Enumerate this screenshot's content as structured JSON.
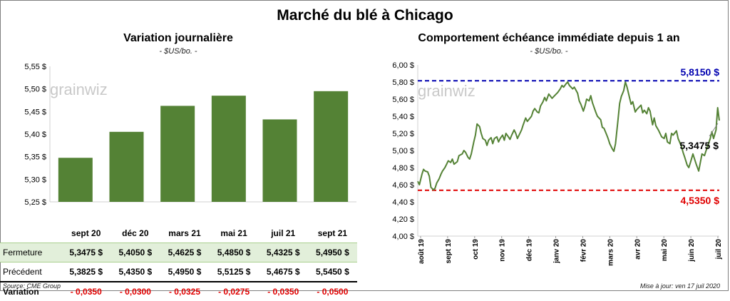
{
  "title": "Marché du blé à Chicago",
  "source": "Source: CME Group",
  "updated": "Mise à jour: ven 17 juil 2020",
  "watermark": "grainwiz",
  "colors": {
    "bar": "#548235",
    "line": "#548235",
    "high": "#0000b0",
    "low": "#e00000",
    "current": "#000000"
  },
  "left_panel": {
    "title": "Variation  journalière",
    "unit": "- $US/bo. -",
    "table": {
      "rows": [
        {
          "label": "Fermeture",
          "values": [
            "5,3475 $",
            "5,4050 $",
            "5,4625 $",
            "5,4850 $",
            "5,4325 $",
            "5,4950 $"
          ]
        },
        {
          "label": "Précédent",
          "values": [
            "5,3825 $",
            "5,4350 $",
            "5,4950 $",
            "5,5125 $",
            "5,4675 $",
            "5,5450 $"
          ]
        },
        {
          "label": "Variation",
          "values": [
            "- 0,0350",
            "- 0,0300",
            "- 0,0325",
            "- 0,0275",
            "- 0,0350",
            "- 0,0500"
          ]
        }
      ]
    }
  },
  "right_panel": {
    "title": "Comportement  échéance immédiate depuis 1 an",
    "unit": "- $US/bo. -",
    "high_label": "5,8150 $",
    "low_label": "4,5350 $",
    "current_label": "5,3475 $"
  },
  "chart_data": [
    {
      "type": "bar",
      "categories": [
        "sept 20",
        "déc 20",
        "mars 21",
        "mai 21",
        "juil 21",
        "sept 21"
      ],
      "values": [
        5.3475,
        5.405,
        5.4625,
        5.485,
        5.4325,
        5.495
      ],
      "ylim": [
        5.25,
        5.55
      ],
      "yticks": [
        "5,25 $",
        "5,30 $",
        "5,35 $",
        "5,40 $",
        "5,45 $",
        "5,50 $",
        "5,55 $"
      ],
      "grid": false
    },
    {
      "type": "line",
      "xlabels": [
        "août 19",
        "sept 19",
        "oct 19",
        "nov 19",
        "déc 19",
        "janv 20",
        "févr 20",
        "mars 20",
        "avr 20",
        "mai 20",
        "juin 20",
        "juil 20"
      ],
      "ylim": [
        4.0,
        6.0
      ],
      "yticks": [
        "4,00 $",
        "4,20 $",
        "4,40 $",
        "4,60 $",
        "4,80 $",
        "5,00 $",
        "5,20 $",
        "5,40 $",
        "5,60 $",
        "5,80 $",
        "6,00 $"
      ],
      "reference_lines": [
        {
          "name": "high",
          "value": 5.815,
          "style": "dashed"
        },
        {
          "name": "low",
          "value": 4.535,
          "style": "dashed"
        }
      ],
      "series": [
        {
          "x": [
            "2019-07-17",
            "2019-07-19",
            "2019-07-22",
            "2019-07-24",
            "2019-07-26",
            "2019-07-29",
            "2019-07-31",
            "2019-08-02",
            "2019-08-05",
            "2019-08-07",
            "2019-08-09",
            "2019-08-12",
            "2019-08-14",
            "2019-08-16",
            "2019-08-19",
            "2019-08-21",
            "2019-08-23",
            "2019-08-26",
            "2019-08-28",
            "2019-08-30",
            "2019-09-03",
            "2019-09-05",
            "2019-09-09",
            "2019-09-11",
            "2019-09-13",
            "2019-09-16",
            "2019-09-18",
            "2019-09-20",
            "2019-09-23",
            "2019-09-25",
            "2019-09-27",
            "2019-09-30",
            "2019-10-02",
            "2019-10-04",
            "2019-10-07",
            "2019-10-09",
            "2019-10-11",
            "2019-10-14",
            "2019-10-16",
            "2019-10-18",
            "2019-10-21",
            "2019-10-23",
            "2019-10-25",
            "2019-10-28",
            "2019-10-30",
            "2019-11-01",
            "2019-11-04",
            "2019-11-06",
            "2019-11-08",
            "2019-11-11",
            "2019-11-13",
            "2019-11-15",
            "2019-11-18",
            "2019-11-20",
            "2019-11-22",
            "2019-11-25",
            "2019-11-27",
            "2019-12-02",
            "2019-12-04",
            "2019-12-06",
            "2019-12-09",
            "2019-12-11",
            "2019-12-13",
            "2019-12-16",
            "2019-12-18",
            "2019-12-20",
            "2019-12-23",
            "2019-12-27",
            "2019-12-30",
            "2020-01-03",
            "2020-01-06",
            "2020-01-08",
            "2020-01-10",
            "2020-01-13",
            "2020-01-15",
            "2020-01-17",
            "2020-01-21",
            "2020-01-23",
            "2020-01-27",
            "2020-01-29",
            "2020-01-31",
            "2020-02-03",
            "2020-02-05",
            "2020-02-07",
            "2020-02-10",
            "2020-02-12",
            "2020-02-14",
            "2020-02-18",
            "2020-02-20",
            "2020-02-24",
            "2020-02-26",
            "2020-02-28",
            "2020-03-02",
            "2020-03-04",
            "2020-03-06",
            "2020-03-09",
            "2020-03-11",
            "2020-03-13",
            "2020-03-16",
            "2020-03-18",
            "2020-03-20",
            "2020-03-23",
            "2020-03-25",
            "2020-03-27",
            "2020-03-30",
            "2020-04-01",
            "2020-04-03",
            "2020-04-06",
            "2020-04-08",
            "2020-04-13",
            "2020-04-15",
            "2020-04-17",
            "2020-04-20",
            "2020-04-22",
            "2020-04-24",
            "2020-04-27",
            "2020-04-29",
            "2020-05-01",
            "2020-05-04",
            "2020-05-06",
            "2020-05-08",
            "2020-05-11",
            "2020-05-13",
            "2020-05-15",
            "2020-05-18",
            "2020-05-20",
            "2020-05-22",
            "2020-05-26",
            "2020-05-28",
            "2020-06-01",
            "2020-06-03",
            "2020-06-05",
            "2020-06-08",
            "2020-06-10",
            "2020-06-12",
            "2020-06-15",
            "2020-06-17",
            "2020-06-19",
            "2020-06-22",
            "2020-06-24",
            "2020-06-26",
            "2020-06-29",
            "2020-07-01",
            "2020-07-06",
            "2020-07-08",
            "2020-07-10",
            "2020-07-13",
            "2020-07-15",
            "2020-07-17"
          ],
          "values": [
            4.64,
            4.6,
            4.72,
            4.78,
            4.76,
            4.75,
            4.7,
            4.57,
            4.54,
            4.56,
            4.62,
            4.67,
            4.72,
            4.76,
            4.8,
            4.84,
            4.88,
            4.86,
            4.9,
            4.84,
            4.87,
            4.94,
            4.96,
            5.0,
            4.98,
            4.92,
            4.9,
            4.96,
            5.1,
            5.18,
            5.31,
            5.28,
            5.2,
            5.14,
            5.12,
            5.06,
            5.12,
            5.15,
            5.08,
            5.14,
            5.16,
            5.1,
            5.14,
            5.18,
            5.12,
            5.2,
            5.16,
            5.13,
            5.18,
            5.24,
            5.2,
            5.14,
            5.2,
            5.24,
            5.3,
            5.38,
            5.34,
            5.4,
            5.46,
            5.49,
            5.45,
            5.44,
            5.52,
            5.57,
            5.62,
            5.58,
            5.66,
            5.61,
            5.64,
            5.68,
            5.72,
            5.76,
            5.74,
            5.78,
            5.8,
            5.76,
            5.72,
            5.74,
            5.67,
            5.58,
            5.54,
            5.46,
            5.52,
            5.6,
            5.58,
            5.64,
            5.56,
            5.45,
            5.4,
            5.36,
            5.27,
            5.26,
            5.19,
            5.14,
            5.08,
            5.02,
            4.99,
            5.08,
            5.35,
            5.55,
            5.63,
            5.7,
            5.8,
            5.74,
            5.62,
            5.54,
            5.57,
            5.45,
            5.48,
            5.53,
            5.44,
            5.47,
            5.43,
            5.5,
            5.46,
            5.3,
            5.38,
            5.29,
            5.24,
            5.2,
            5.16,
            5.14,
            5.2,
            5.1,
            5.08,
            5.2,
            5.18,
            5.23,
            5.14,
            5.05,
            4.98,
            4.92,
            4.83,
            4.8,
            4.86,
            4.96,
            4.9,
            4.84,
            4.76,
            4.86,
            4.96,
            4.94,
            5.0,
            5.14,
            5.22,
            5.14,
            5.24,
            5.5,
            5.35
          ]
        }
      ]
    }
  ]
}
